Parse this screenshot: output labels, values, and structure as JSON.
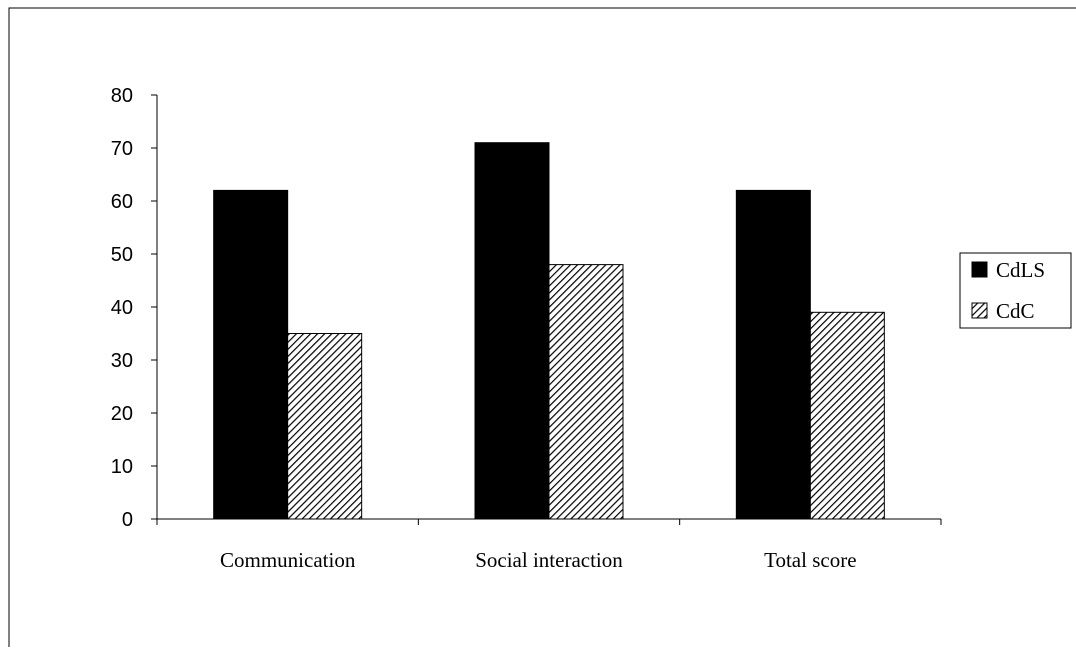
{
  "chart_data": {
    "type": "bar",
    "categories": [
      "Communication",
      "Social interaction",
      "Total score"
    ],
    "series": [
      {
        "name": "CdLS",
        "values": [
          62,
          71,
          62
        ],
        "fill": "solid"
      },
      {
        "name": "CdC",
        "values": [
          35,
          48,
          39
        ],
        "fill": "hatched"
      }
    ],
    "title": "",
    "xlabel": "",
    "ylabel": "",
    "ylim": [
      0,
      80
    ],
    "yticks": [
      0,
      10,
      20,
      30,
      40,
      50,
      60,
      70,
      80
    ],
    "grid": false,
    "legend_position": "right"
  },
  "colors": {
    "solid_bar": "#000000",
    "hatch_stroke": "#000000",
    "hatch_background": "#ffffff",
    "frame": "#000000"
  }
}
